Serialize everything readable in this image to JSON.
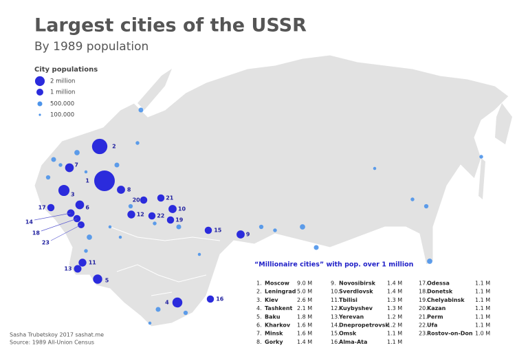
{
  "header": {
    "title": "Largest cities of the USSR",
    "subtitle": "By 1989 population"
  },
  "legend": {
    "title": "City populations",
    "items": [
      {
        "value": 2,
        "label": "2 million"
      },
      {
        "value": 1,
        "label": "1 million"
      },
      {
        "value": 0.5,
        "label": "500.000"
      },
      {
        "value": 0.1,
        "label": "100.000"
      }
    ]
  },
  "table": {
    "title": "“Millionaire cities” with pop. over 1 million",
    "rows": [
      {
        "rank": 1,
        "rank_label": "1.",
        "name": "Moscow",
        "population": 9.0,
        "population_label": "9.0 M"
      },
      {
        "rank": 2,
        "rank_label": "2.",
        "name": "Leningrad",
        "population": 5.0,
        "population_label": "5.0 M"
      },
      {
        "rank": 3,
        "rank_label": "3.",
        "name": "Kiev",
        "population": 2.6,
        "population_label": "2.6 M"
      },
      {
        "rank": 4,
        "rank_label": "4.",
        "name": "Tashkent",
        "population": 2.1,
        "population_label": "2.1 M"
      },
      {
        "rank": 5,
        "rank_label": "5.",
        "name": "Baku",
        "population": 1.8,
        "population_label": "1.8 M"
      },
      {
        "rank": 6,
        "rank_label": "6.",
        "name": "Kharkov",
        "population": 1.6,
        "population_label": "1.6 M"
      },
      {
        "rank": 7,
        "rank_label": "7.",
        "name": "Minsk",
        "population": 1.6,
        "population_label": "1.6 M"
      },
      {
        "rank": 8,
        "rank_label": "8.",
        "name": "Gorky",
        "population": 1.4,
        "population_label": "1.4 M"
      },
      {
        "rank": 9,
        "rank_label": "9.",
        "name": "Novosibirsk",
        "population": 1.4,
        "population_label": "1.4 M"
      },
      {
        "rank": 10,
        "rank_label": "10.",
        "name": "Sverdlovsk",
        "population": 1.4,
        "population_label": "1.4 M"
      },
      {
        "rank": 11,
        "rank_label": "11.",
        "name": "Tbilisi",
        "population": 1.3,
        "population_label": "1.3 M"
      },
      {
        "rank": 12,
        "rank_label": "12.",
        "name": "Kuybyshev",
        "population": 1.3,
        "population_label": "1.3 M"
      },
      {
        "rank": 13,
        "rank_label": "13.",
        "name": "Yerevan",
        "population": 1.2,
        "population_label": "1.2 M"
      },
      {
        "rank": 14,
        "rank_label": "14.",
        "name": "Dnepropetrovsk",
        "population": 1.2,
        "population_label": "1.2 M"
      },
      {
        "rank": 15,
        "rank_label": "15.",
        "name": "Omsk",
        "population": 1.1,
        "population_label": "1.1 M"
      },
      {
        "rank": 16,
        "rank_label": "16.",
        "name": "Alma-Ata",
        "population": 1.1,
        "population_label": "1.1 M"
      },
      {
        "rank": 17,
        "rank_label": "17.",
        "name": "Odessa",
        "population": 1.1,
        "population_label": "1.1 M"
      },
      {
        "rank": 18,
        "rank_label": "18.",
        "name": "Donetsk",
        "population": 1.1,
        "population_label": "1.1 M"
      },
      {
        "rank": 19,
        "rank_label": "19.",
        "name": "Chelyabinsk",
        "population": 1.1,
        "population_label": "1.1 M"
      },
      {
        "rank": 20,
        "rank_label": "20.",
        "name": "Kazan",
        "population": 1.1,
        "population_label": "1.1 M"
      },
      {
        "rank": 21,
        "rank_label": "21.",
        "name": "Perm",
        "population": 1.1,
        "population_label": "1.1 M"
      },
      {
        "rank": 22,
        "rank_label": "22.",
        "name": "Ufa",
        "population": 1.1,
        "population_label": "1.1 M"
      },
      {
        "rank": 23,
        "rank_label": "23.",
        "name": "Rostov-on-Don",
        "population": 1.0,
        "population_label": "1.0 M"
      }
    ]
  },
  "other_cities": [
    0.5,
    0.4,
    0.3,
    0.6,
    0.2,
    0.5,
    0.3,
    0.4,
    0.2,
    0.6,
    0.3,
    0.5,
    0.2,
    0.4,
    0.3,
    0.6,
    0.5,
    0.2,
    0.3,
    0.4,
    0.6,
    0.3,
    0.2,
    0.5,
    0.4,
    0.3,
    0.2,
    0.5
  ],
  "credits": {
    "author": "Sasha Trubetskoy 2017 sashat.me",
    "source": "Source: 1989 All-Union Census"
  }
}
